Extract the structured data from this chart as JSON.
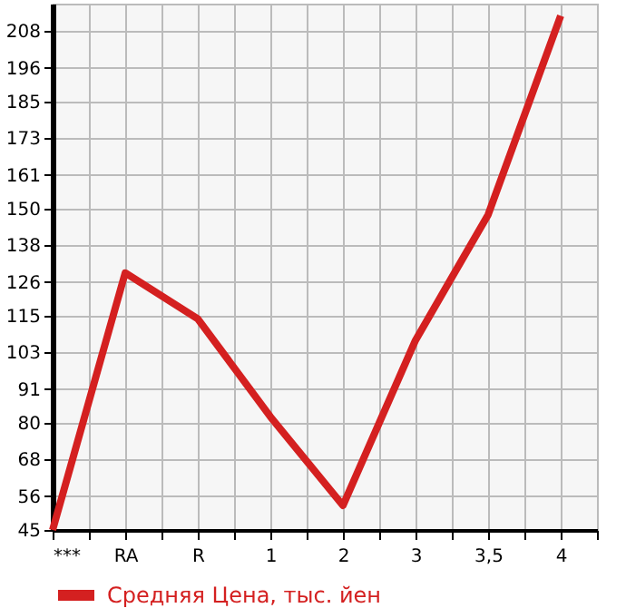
{
  "chart_data": {
    "type": "line",
    "categories": [
      "***",
      "RA",
      "R",
      "1",
      "2",
      "3",
      "3,5",
      "4"
    ],
    "series": [
      {
        "name": "Средняя Цена, тыс. йен",
        "color": "#d42020",
        "values": [
          45,
          129,
          114,
          82,
          53,
          107,
          148,
          213
        ]
      }
    ],
    "ylim": [
      45,
      217
    ],
    "yticks": [
      45,
      56,
      68,
      80,
      91,
      103,
      115,
      126,
      138,
      150,
      161,
      173,
      185,
      196,
      208
    ],
    "grid": true,
    "legend": "bottom left",
    "marker": "none",
    "line_style": "solid"
  }
}
